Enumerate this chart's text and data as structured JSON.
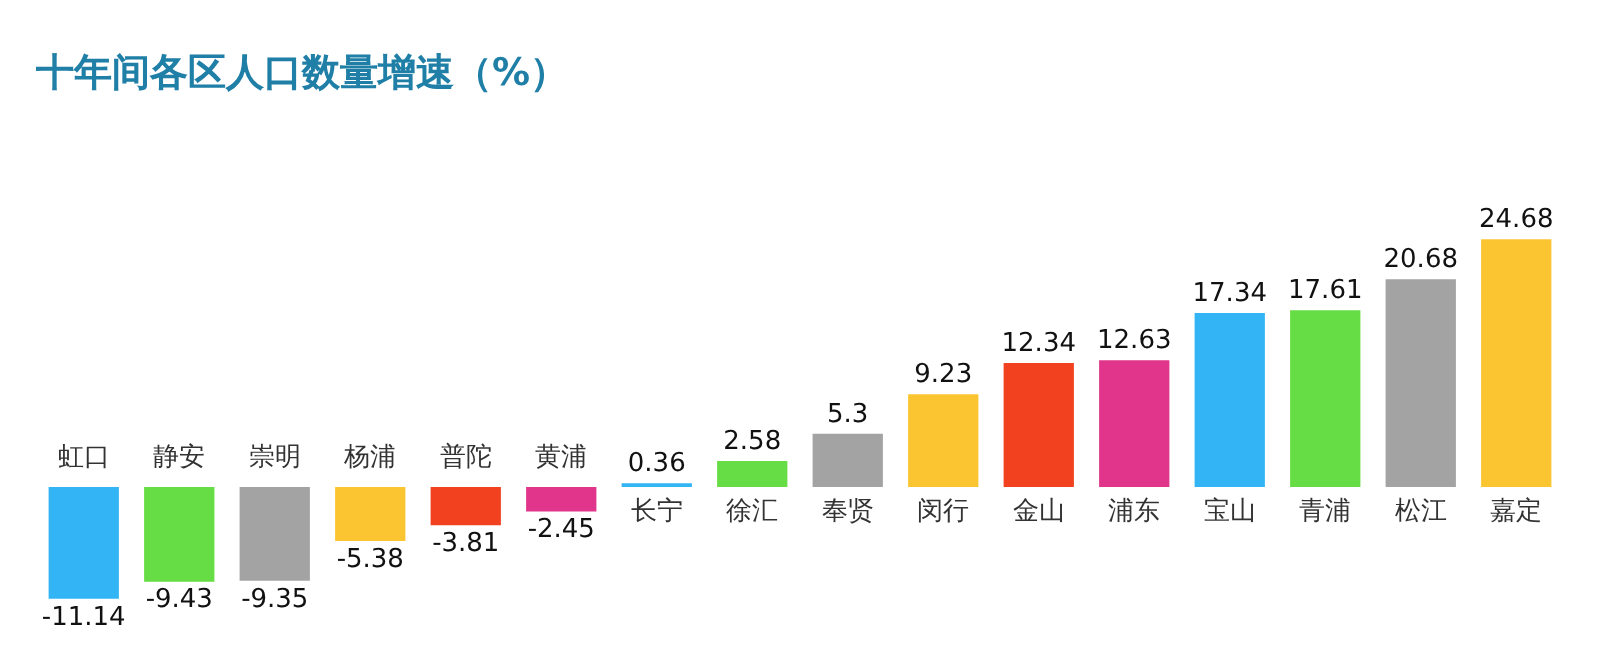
{
  "chart_data": {
    "type": "bar",
    "title": "十年间各区人口数量增速（%）",
    "categories": [
      "虹口",
      "静安",
      "崇明",
      "杨浦",
      "普陀",
      "黄浦",
      "长宁",
      "徐汇",
      "奉贤",
      "闵行",
      "金山",
      "浦东",
      "宝山",
      "青浦",
      "松江",
      "嘉定"
    ],
    "values": [
      -11.14,
      -9.43,
      -9.35,
      -5.38,
      -3.81,
      -2.45,
      0.36,
      2.58,
      5.3,
      9.23,
      12.34,
      12.63,
      17.34,
      17.61,
      20.68,
      24.68
    ],
    "colors": [
      "#33b5f5",
      "#66dd44",
      "#a3a3a3",
      "#fbc531",
      "#f2411f",
      "#e0358a",
      "#33b5f5",
      "#66dd44",
      "#a3a3a3",
      "#fbc531",
      "#f2411f",
      "#e0358a",
      "#33b5f5",
      "#66dd44",
      "#a3a3a3",
      "#fbc531"
    ],
    "data_labels": true,
    "legend": false
  }
}
